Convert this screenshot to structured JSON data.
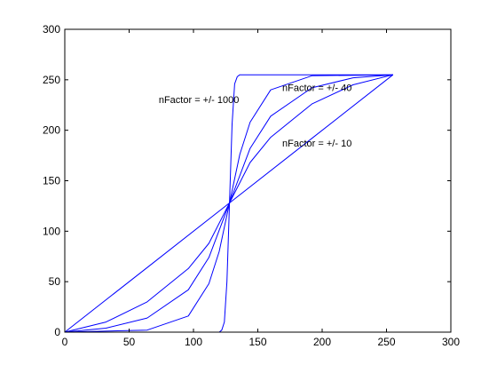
{
  "chart_data": {
    "type": "line",
    "title": "",
    "xlabel": "",
    "ylabel": "",
    "xlim": [
      0,
      300
    ],
    "ylim": [
      0,
      300
    ],
    "xticks": [
      0,
      50,
      100,
      150,
      200,
      250,
      300
    ],
    "yticks": [
      0,
      50,
      100,
      150,
      200,
      250,
      300
    ],
    "grid": false,
    "line_color": "#0000ff",
    "series": [
      {
        "points": [
          [
            0,
            0
          ],
          [
            64,
            64
          ],
          [
            128,
            128
          ],
          [
            192,
            192
          ],
          [
            255,
            255
          ]
        ]
      },
      {
        "points": [
          [
            0,
            0
          ],
          [
            32,
            10
          ],
          [
            64,
            30
          ],
          [
            96,
            63
          ],
          [
            112,
            88
          ],
          [
            128,
            128
          ],
          [
            144,
            168
          ],
          [
            160,
            193
          ],
          [
            192,
            226
          ],
          [
            224,
            245
          ],
          [
            255,
            255
          ]
        ]
      },
      {
        "points": [
          [
            0,
            0
          ],
          [
            32,
            4
          ],
          [
            64,
            14
          ],
          [
            96,
            42
          ],
          [
            112,
            74
          ],
          [
            128,
            128
          ],
          [
            144,
            182
          ],
          [
            160,
            214
          ],
          [
            192,
            242
          ],
          [
            224,
            252
          ],
          [
            255,
            255
          ]
        ]
      },
      {
        "points": [
          [
            0,
            0
          ],
          [
            64,
            2
          ],
          [
            96,
            16
          ],
          [
            112,
            48
          ],
          [
            120,
            80
          ],
          [
            128,
            128
          ],
          [
            136,
            176
          ],
          [
            144,
            208
          ],
          [
            160,
            240
          ],
          [
            192,
            254
          ],
          [
            255,
            255
          ]
        ]
      },
      {
        "points": [
          [
            0,
            0
          ],
          [
            120,
            0
          ],
          [
            122,
            2
          ],
          [
            124,
            10
          ],
          [
            126,
            50
          ],
          [
            128,
            128
          ],
          [
            130,
            206
          ],
          [
            132,
            246
          ],
          [
            134,
            253
          ],
          [
            136,
            255
          ],
          [
            255,
            255
          ]
        ]
      }
    ],
    "annotations": [
      {
        "text": "nFactor  =  +/- 1000",
        "x": 73,
        "y": 227
      },
      {
        "text": "nFactor  =  +/- 40",
        "x": 169,
        "y": 239
      },
      {
        "text": "nFactor  =  +/- 10",
        "x": 169,
        "y": 184
      }
    ]
  }
}
